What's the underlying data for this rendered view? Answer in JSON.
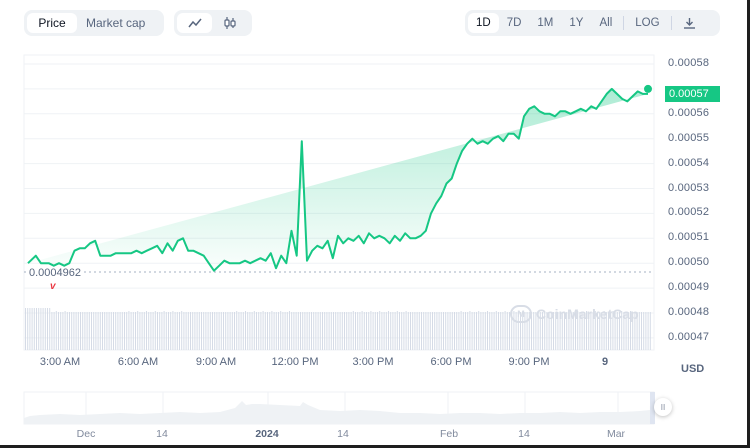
{
  "toolbar": {
    "type_options": [
      {
        "label": "Price",
        "active": true
      },
      {
        "label": "Market cap",
        "active": false
      }
    ],
    "style_options": [
      {
        "icon": "line-chart-icon",
        "glyph": "〰",
        "active": true
      },
      {
        "icon": "candlestick-icon",
        "glyph": "ǒ̈",
        "active": false
      }
    ],
    "range_options": [
      {
        "label": "1D",
        "active": true
      },
      {
        "label": "7D",
        "active": false
      },
      {
        "label": "1M",
        "active": false
      },
      {
        "label": "1Y",
        "active": false
      },
      {
        "label": "All",
        "active": false
      }
    ],
    "log_label": "LOG",
    "download_icon": "download-icon"
  },
  "current_price": "0.00057",
  "min_price_label": "0.0004962",
  "currency_label": "USD",
  "watermark": "CoinMarketCap",
  "colors": {
    "line": "#16c784",
    "area_top": "#16c784",
    "min_marker": "#ea3943",
    "volume": "#cfd6e4"
  },
  "chart_data": {
    "type": "line",
    "title": "",
    "xlabel": "",
    "ylabel": "USD",
    "ylim": [
      0.000466,
      0.000584
    ],
    "y_ticks": [
      "0.00058",
      "0.00057",
      "0.00056",
      "0.00055",
      "0.00054",
      "0.00053",
      "0.00052",
      "0.00051",
      "0.00050",
      "0.00049",
      "0.00048",
      "0.00047"
    ],
    "x_ticks": [
      "3:00 AM",
      "6:00 AM",
      "9:00 AM",
      "12:00 PM",
      "3:00 PM",
      "6:00 PM",
      "9:00 PM",
      "9"
    ],
    "grid": true,
    "series": [
      {
        "name": "Price",
        "x_hours": [
          0.0,
          0.3,
          0.5,
          0.8,
          1.0,
          1.2,
          1.4,
          1.6,
          1.8,
          2.0,
          2.2,
          2.4,
          2.6,
          2.8,
          3.0,
          3.2,
          3.4,
          3.6,
          3.8,
          4.0,
          4.2,
          4.4,
          4.6,
          4.8,
          5.0,
          5.2,
          5.4,
          5.6,
          5.8,
          6.0,
          6.2,
          6.4,
          6.6,
          6.8,
          7.0,
          7.2,
          7.4,
          7.6,
          7.8,
          8.0,
          8.2,
          8.4,
          8.6,
          8.8,
          9.0,
          9.2,
          9.4,
          9.6,
          9.8,
          10.0,
          10.2,
          10.4,
          10.6,
          10.8,
          11.0,
          11.2,
          11.4,
          11.6,
          11.8,
          12.0,
          12.2,
          12.4,
          12.6,
          12.8,
          13.0,
          13.2,
          13.4,
          13.6,
          13.8,
          14.0,
          14.2,
          14.4,
          14.6,
          14.8,
          15.0,
          15.2,
          15.4,
          15.6,
          15.8,
          16.0,
          16.2,
          16.4,
          16.6,
          16.8,
          17.0,
          17.2,
          17.4,
          17.6,
          17.8,
          18.0,
          18.2,
          18.4,
          18.6,
          18.8,
          19.0,
          19.2,
          19.4,
          19.6,
          19.8,
          20.0,
          20.2,
          20.4,
          20.6,
          20.8,
          21.0,
          21.2,
          21.4,
          21.6,
          21.8,
          22.0,
          22.2,
          22.4,
          22.6,
          22.8,
          23.0,
          23.2,
          23.4,
          23.6,
          23.8,
          24.0
        ],
        "values": [
          0.0005,
          0.000503,
          0.0005,
          0.0005,
          0.000499,
          0.0005,
          0.000499,
          0.0005,
          0.000505,
          0.000506,
          0.000506,
          0.000508,
          0.000509,
          0.000503,
          0.000503,
          0.000503,
          0.000504,
          0.000504,
          0.000504,
          0.000504,
          0.000505,
          0.000504,
          0.000505,
          0.000506,
          0.000507,
          0.000504,
          0.000508,
          0.000505,
          0.000509,
          0.00051,
          0.000505,
          0.000505,
          0.000504,
          0.000503,
          0.0005,
          0.000497,
          0.000499,
          0.000501,
          0.0005,
          0.0005,
          0.0005,
          0.000501,
          0.0005,
          0.000501,
          0.000502,
          0.000501,
          0.000504,
          0.000498,
          0.000503,
          0.0005,
          0.000513,
          0.000503,
          0.000549,
          0.000501,
          0.000505,
          0.000507,
          0.000506,
          0.000509,
          0.000502,
          0.000511,
          0.000508,
          0.00051,
          0.000509,
          0.000511,
          0.000508,
          0.000512,
          0.00051,
          0.000511,
          0.00051,
          0.000508,
          0.000511,
          0.000509,
          0.000512,
          0.00051,
          0.00051,
          0.000511,
          0.000513,
          0.00052,
          0.000524,
          0.000527,
          0.000532,
          0.000534,
          0.00054,
          0.000545,
          0.000548,
          0.00055,
          0.000548,
          0.000549,
          0.000548,
          0.00055,
          0.000551,
          0.000549,
          0.000552,
          0.000552,
          0.00055,
          0.000559,
          0.000562,
          0.000563,
          0.000561,
          0.00056,
          0.00056,
          0.000559,
          0.000561,
          0.000561,
          0.00056,
          0.000561,
          0.000562,
          0.000561,
          0.000563,
          0.000562,
          0.000565,
          0.000568,
          0.00057,
          0.000568,
          0.000566,
          0.000565,
          0.000567,
          0.000569,
          0.000568,
          0.000568,
          0.00057
        ]
      }
    ],
    "min": {
      "value": 0.0004962,
      "label": "0.0004962"
    },
    "last": {
      "value": 0.00057,
      "label": "0.00057"
    },
    "navigator": {
      "labels": [
        "Dec",
        "14",
        "2024",
        "14",
        "Feb",
        "14",
        "Mar"
      ],
      "bold_label": "2024"
    }
  }
}
